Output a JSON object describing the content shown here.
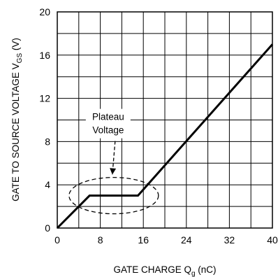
{
  "chart_data": {
    "type": "line",
    "xlabel": {
      "main": "GATE CHARGE Q",
      "sub": "g",
      "unit": " (nC)"
    },
    "ylabel": {
      "main": "GATE TO SOURCE VOLTAGE V",
      "sub": "GS",
      "unit": " (V)"
    },
    "xlim": [
      0,
      40
    ],
    "ylim": [
      0,
      20
    ],
    "x_ticks": [
      0,
      8,
      16,
      24,
      32,
      40
    ],
    "y_ticks": [
      0,
      4,
      8,
      12,
      16,
      20
    ],
    "x_tick_labels": [
      "0",
      "8",
      "16",
      "24",
      "32",
      "40"
    ],
    "y_tick_labels": [
      "0",
      "4",
      "8",
      "12",
      "16",
      "20"
    ],
    "grid": true,
    "series": [
      {
        "x": [
          0,
          6,
          15,
          40
        ],
        "y": [
          0,
          3,
          3,
          17
        ]
      }
    ],
    "annotations": [
      {
        "text_lines": [
          "Plateau",
          "Voltage"
        ],
        "target_x": 10.5,
        "target_y": 3,
        "shape": "dashed-ellipse",
        "arrow": true
      }
    ]
  }
}
